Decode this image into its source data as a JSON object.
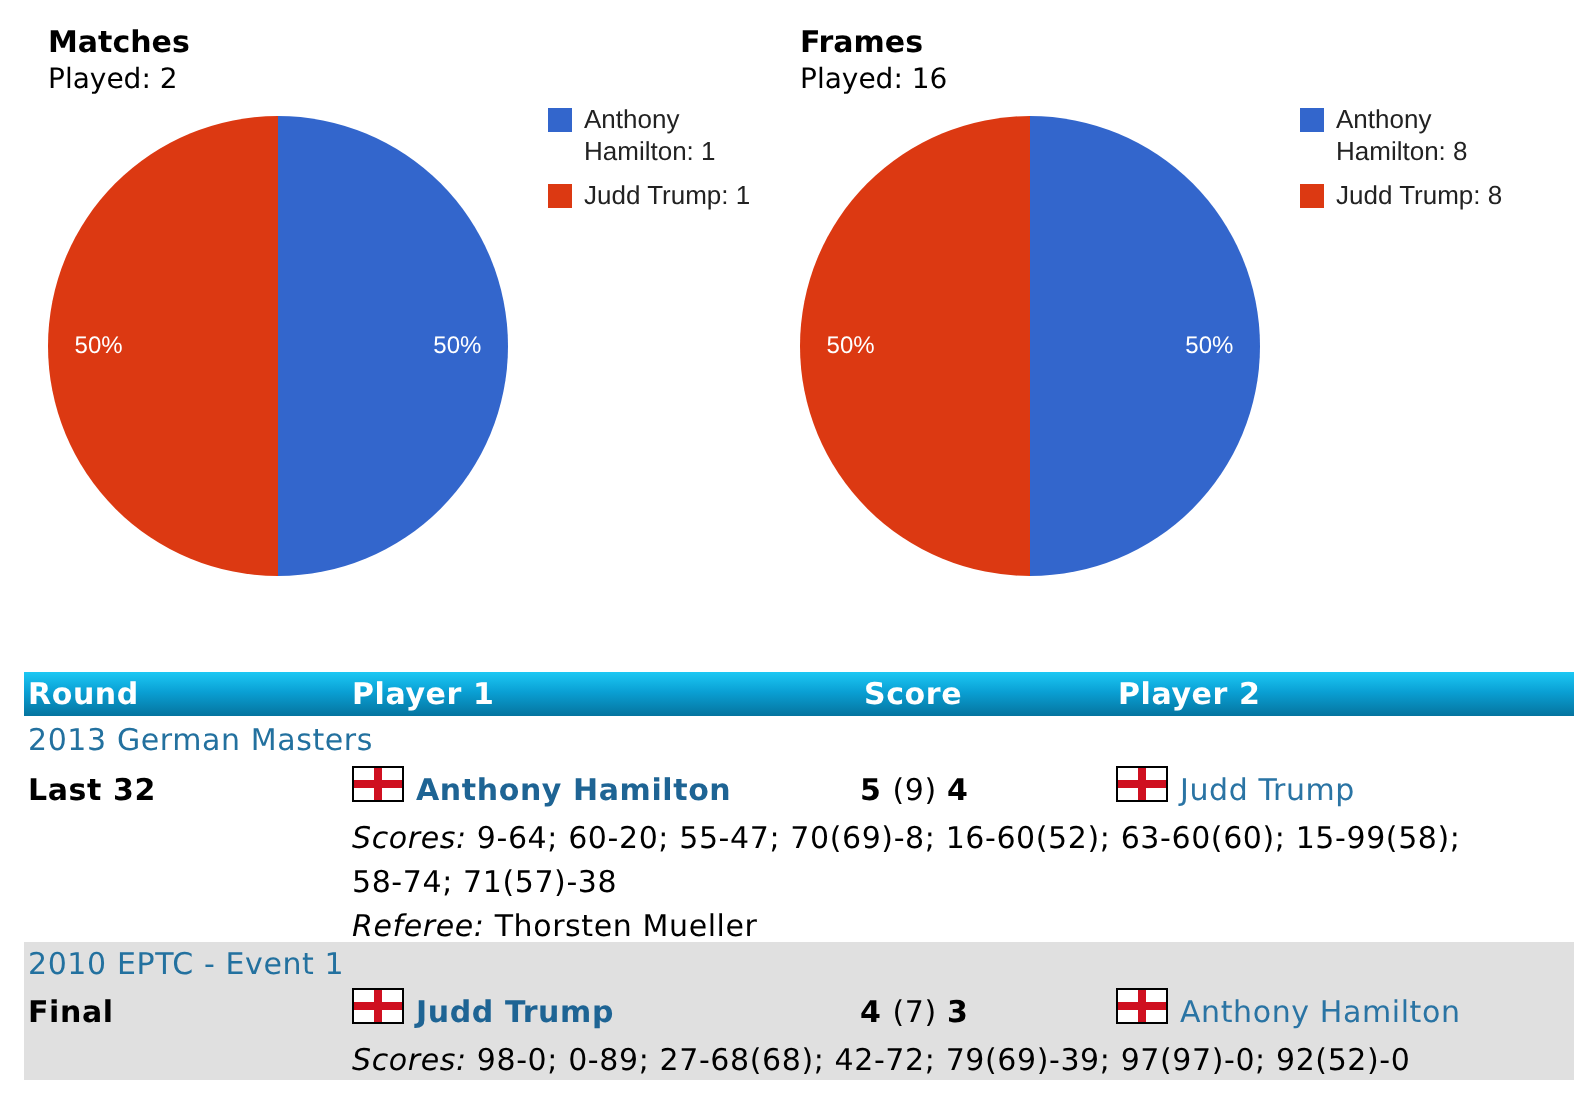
{
  "chart_data": [
    {
      "type": "pie",
      "title": "Matches",
      "subtitle": "Played: 2",
      "categories": [
        "Anthony Hamilton: 1",
        "Judd Trump: 1"
      ],
      "values": [
        50,
        50
      ],
      "colors": [
        "#3366cc",
        "#dc3912"
      ],
      "value_labels": [
        "50%",
        "50%"
      ],
      "legend": "right"
    },
    {
      "type": "pie",
      "title": "Frames",
      "subtitle": "Played: 16",
      "categories": [
        "Anthony Hamilton: 8",
        "Judd Trump: 8"
      ],
      "values": [
        50,
        50
      ],
      "colors": [
        "#3366cc",
        "#dc3912"
      ],
      "value_labels": [
        "50%",
        "50%"
      ],
      "legend": "right"
    },
    {
      "type": "other",
      "annotations": [
        "Round",
        "Player 1",
        "Score",
        "Player 2",
        "2013 German Masters",
        "Last 32",
        "Anthony Hamilton",
        "5 (9) 4",
        "Judd Trump",
        "Scores: 9-64; 60-20; 55-47; 70(69)-8; 16-60(52); 63-60(60); 15-99(58); 58-74; 71(57)-38",
        "Referee: Thorsten Mueller",
        "2010 EPTC - Event 1",
        "Final",
        "Judd Trump",
        "4 (7) 3",
        "Anthony Hamilton",
        "Scores: 98-0; 0-89; 27-68(68); 42-72; 79(69)-39; 97(97)-0; 92(52)-0"
      ]
    }
  ]
}
